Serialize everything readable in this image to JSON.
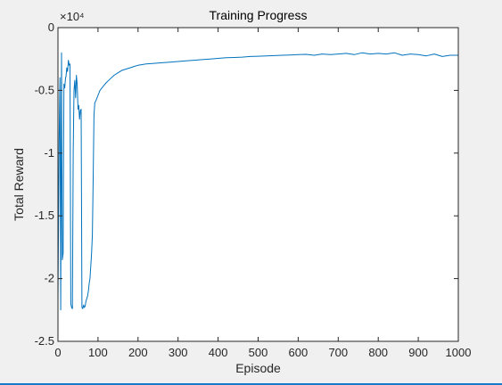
{
  "figure": {
    "background": "#f0f0f0",
    "axes_background": "#ffffff",
    "accent_border": "#1979ca"
  },
  "chart_data": {
    "type": "line",
    "title": "Training Progress",
    "xlabel": "Episode",
    "ylabel": "Total Reward",
    "xlim": [
      0,
      1000
    ],
    "ylim": [
      -25000,
      0
    ],
    "xticks": [
      0,
      100,
      200,
      300,
      400,
      500,
      600,
      700,
      800,
      900,
      1000
    ],
    "xtick_labels": [
      "0",
      "100",
      "200",
      "300",
      "400",
      "500",
      "600",
      "700",
      "800",
      "900",
      "1000"
    ],
    "yticks": [
      0,
      -5000,
      -10000,
      -15000,
      -20000,
      -25000
    ],
    "ytick_labels": [
      "0",
      "-0.5",
      "-1",
      "-1.5",
      "-2",
      "-2.5"
    ],
    "y_exponent_label": "×10⁴",
    "grid": false,
    "line_color": "#0072bd",
    "series": [
      {
        "x": [
          0,
          3,
          5,
          7,
          9,
          11,
          13,
          15,
          17,
          19,
          20,
          22,
          24,
          26,
          28,
          30,
          32,
          34,
          36,
          38,
          40,
          42,
          44,
          46,
          48,
          50,
          52,
          54,
          56,
          58,
          60,
          62,
          64,
          66,
          68,
          70,
          72,
          74,
          76,
          78,
          80,
          82,
          84,
          86,
          88,
          90,
          92,
          95,
          100,
          105,
          110,
          115,
          120,
          130,
          140,
          150,
          160,
          170,
          180,
          190,
          200,
          220,
          240,
          260,
          280,
          300,
          320,
          340,
          360,
          380,
          400,
          420,
          440,
          460,
          480,
          500,
          520,
          540,
          560,
          580,
          600,
          620,
          640,
          660,
          680,
          700,
          720,
          740,
          760,
          780,
          800,
          820,
          840,
          860,
          880,
          900,
          920,
          940,
          960,
          980,
          1000
        ],
        "y": [
          -22000,
          -9000,
          -4000,
          -22500,
          -2000,
          -18500,
          -18000,
          -4500,
          -4800,
          -4000,
          -3900,
          -3200,
          -3500,
          -2600,
          -3000,
          -2900,
          -22000,
          -22300,
          -22400,
          -10000,
          -5000,
          -4200,
          -5600,
          -3800,
          -4600,
          -6500,
          -6200,
          -7300,
          -6600,
          -6500,
          -22300,
          -22400,
          -22100,
          -22300,
          -22200,
          -21800,
          -21600,
          -21400,
          -21000,
          -20400,
          -20000,
          -19000,
          -18000,
          -16500,
          -12000,
          -7000,
          -6000,
          -5800,
          -5400,
          -5000,
          -4800,
          -4600,
          -4400,
          -4100,
          -3800,
          -3600,
          -3400,
          -3300,
          -3200,
          -3100,
          -3000,
          -2900,
          -2850,
          -2800,
          -2750,
          -2700,
          -2650,
          -2600,
          -2550,
          -2500,
          -2450,
          -2400,
          -2380,
          -2350,
          -2300,
          -2280,
          -2250,
          -2230,
          -2200,
          -2180,
          -2150,
          -2130,
          -2200,
          -2100,
          -2150,
          -2100,
          -2050,
          -2150,
          -2000,
          -2100,
          -2050,
          -2100,
          -2000,
          -2200,
          -2100,
          -2150,
          -2250,
          -2100,
          -2300,
          -2200,
          -2200
        ]
      }
    ]
  }
}
